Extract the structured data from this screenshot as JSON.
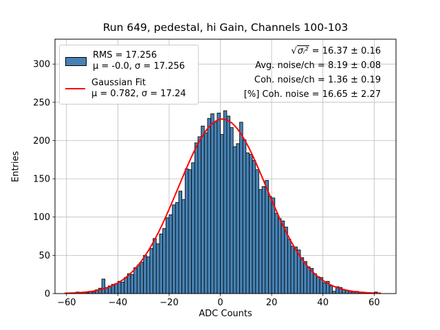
{
  "chart_data": {
    "type": "bar",
    "subtype": "histogram",
    "title": "Run 649, pedestal, hi Gain, Channels 100-103",
    "xlabel": "ADC Counts",
    "ylabel": "Entries",
    "xlim": [
      -64.5,
      68.5
    ],
    "ylim": [
      0,
      332.5
    ],
    "grid": true,
    "legend_position": "upper left",
    "xticks": [
      {
        "v": -60,
        "label": "−60"
      },
      {
        "v": -40,
        "label": "−40"
      },
      {
        "v": -20,
        "label": "−20"
      },
      {
        "v": 0,
        "label": "0"
      },
      {
        "v": 20,
        "label": "20"
      },
      {
        "v": 40,
        "label": "40"
      },
      {
        "v": 60,
        "label": "60"
      }
    ],
    "yticks": [
      {
        "v": 0,
        "label": "0"
      },
      {
        "v": 50,
        "label": "50"
      },
      {
        "v": 100,
        "label": "100"
      },
      {
        "v": 150,
        "label": "150"
      },
      {
        "v": 200,
        "label": "200"
      },
      {
        "v": 250,
        "label": "250"
      },
      {
        "v": 300,
        "label": "300"
      }
    ],
    "bin_start": -58.75,
    "bin_width": 1.25,
    "counts": [
      1,
      0,
      2,
      1,
      2,
      1,
      3,
      2,
      5,
      7,
      19,
      8,
      10,
      12,
      13,
      16,
      15,
      21,
      26,
      25,
      34,
      37,
      41,
      50,
      48,
      59,
      72,
      65,
      78,
      85,
      99,
      103,
      116,
      119,
      134,
      123,
      163,
      162,
      171,
      197,
      205,
      219,
      210,
      229,
      235,
      224,
      236,
      208,
      239,
      232,
      217,
      192,
      196,
      224,
      201,
      184,
      182,
      174,
      162,
      136,
      140,
      148,
      127,
      125,
      105,
      98,
      95,
      87,
      71,
      62,
      61,
      57,
      47,
      42,
      35,
      33,
      26,
      22,
      21,
      14,
      16,
      10,
      3,
      9,
      8,
      5,
      4,
      3,
      2,
      3,
      1,
      2,
      1,
      0,
      1,
      2,
      1
    ],
    "fit": {
      "amplitude": 228,
      "mu": 0.782,
      "sigma": 17.24,
      "x_range": [
        -60.6,
        62.6
      ]
    },
    "legend": {
      "entry1": {
        "label_line1": "RMS = 17.256",
        "label_line2": "μ = -0.0, σ = 17.256"
      },
      "entry2": {
        "label_line1": "Gaussian Fit",
        "label_line2": "μ = 0.782, σ = 17.24"
      }
    },
    "stats": {
      "line1": {
        "sqrt": "√",
        "radicand": "σᵢ²",
        "rest": " = 16.37 ± 0.16"
      },
      "line2": "Avg. noise/ch = 8.19 ± 0.08",
      "line3": "Coh. noise/ch = 1.36 ± 0.19",
      "line4": "[%] Coh. noise = 16.65 ± 2.27"
    },
    "colors": {
      "bar_fill": "#4682b4",
      "bar_edge": "#000000",
      "fit_line": "#ff0000",
      "grid": "#bbbbbb",
      "text": "#000000"
    }
  }
}
